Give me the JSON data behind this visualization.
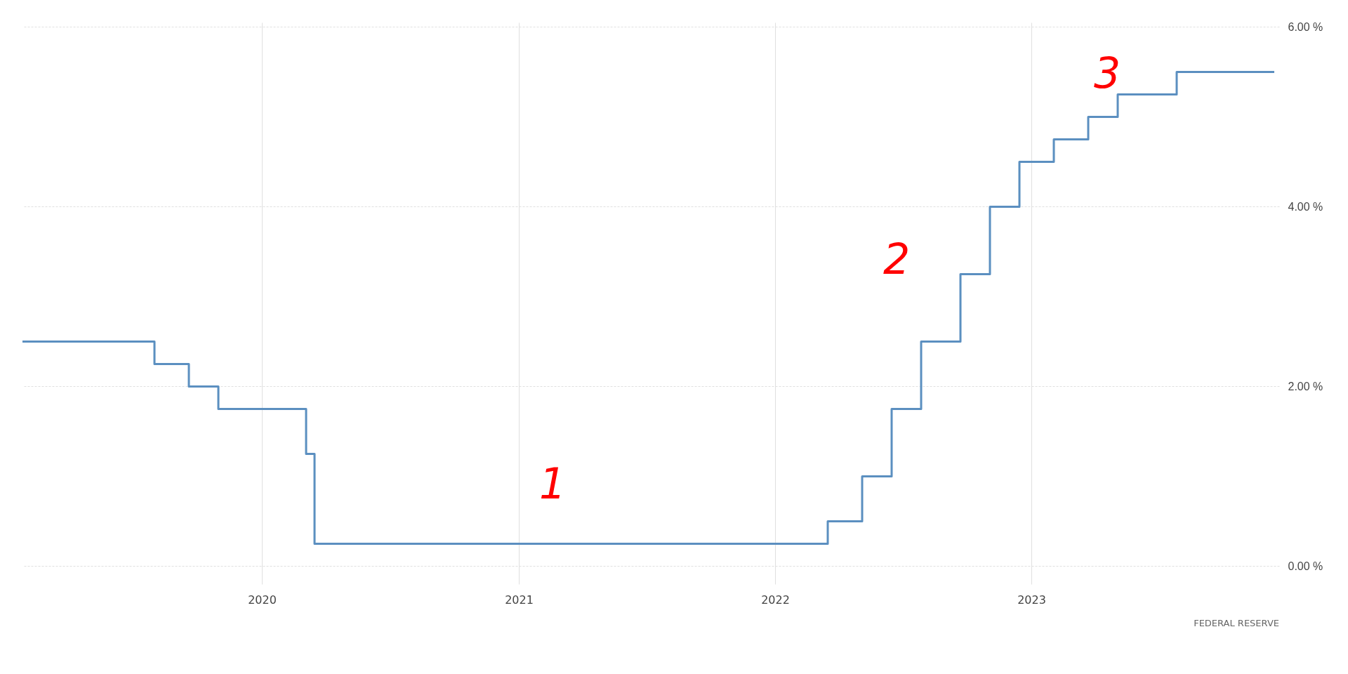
{
  "chart_data": {
    "type": "step",
    "series": [
      {
        "color": "#5b8fc0",
        "x": [
          "2019-01-25",
          "2019-08-01",
          "2019-09-19",
          "2019-10-31",
          "2020-03-04",
          "2020-03-16",
          "2022-03-17",
          "2022-05-05",
          "2022-06-16",
          "2022-07-28",
          "2022-09-22",
          "2022-11-03",
          "2022-12-15",
          "2023-02-02",
          "2023-03-23",
          "2023-05-04",
          "2023-07-27",
          "2023-12-13"
        ],
        "values": [
          2.5,
          2.25,
          2.0,
          1.75,
          1.25,
          0.25,
          0.5,
          1.0,
          1.75,
          2.5,
          3.25,
          4.0,
          4.5,
          4.75,
          5.0,
          5.25,
          5.5,
          5.5
        ]
      }
    ],
    "xlim": [
      "2019-01-25",
      "2023-12-20"
    ],
    "xticks": [
      {
        "value": "2020-01-01",
        "label": "2020"
      },
      {
        "value": "2021-01-01",
        "label": "2021"
      },
      {
        "value": "2022-01-01",
        "label": "2022"
      },
      {
        "value": "2023-01-01",
        "label": "2023"
      }
    ],
    "ylim": [
      -0.2,
      6.05
    ],
    "yticks": [
      {
        "value": 0,
        "label": "0.00 %"
      },
      {
        "value": 2,
        "label": "2.00 %"
      },
      {
        "value": 4,
        "label": "4.00 %"
      },
      {
        "value": 6,
        "label": "6.00 %"
      }
    ],
    "grid": true,
    "line_style": "solid",
    "marker": "none",
    "annotations": [
      "1",
      "2",
      "3",
      "FEDERAL RESERVE"
    ]
  }
}
